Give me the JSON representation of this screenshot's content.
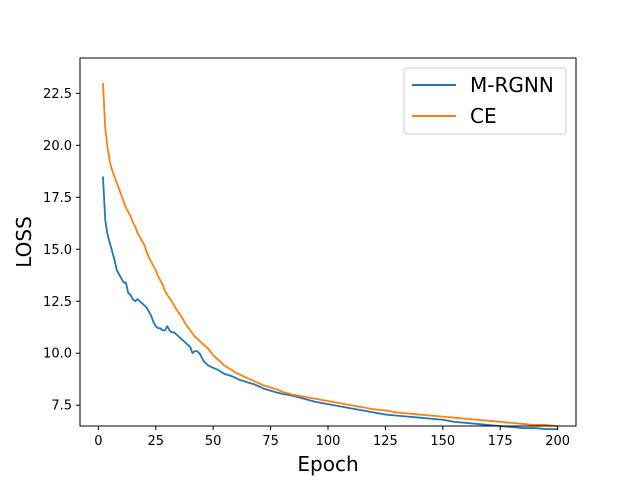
{
  "chart_data": {
    "type": "line",
    "xlabel": "Epoch",
    "ylabel": "LOSS",
    "xlim": [
      -8,
      208
    ],
    "ylim": [
      6.5,
      24.2
    ],
    "xticks": [
      0,
      25,
      50,
      75,
      100,
      125,
      150,
      175,
      200
    ],
    "yticks": [
      7.5,
      10.0,
      12.5,
      15.0,
      17.5,
      20.0,
      22.5
    ],
    "xtick_labels": [
      "0",
      "25",
      "50",
      "75",
      "100",
      "125",
      "150",
      "175",
      "200"
    ],
    "ytick_labels": [
      "7.5",
      "10.0",
      "12.5",
      "15.0",
      "17.5",
      "20.0",
      "22.5"
    ],
    "grid": false,
    "legend_position": "top-right",
    "series": [
      {
        "name": "M-RGNN",
        "color": "#1f77b4",
        "x": [
          2,
          3,
          4,
          5,
          6,
          7,
          8,
          9,
          10,
          11,
          12,
          13,
          14,
          15,
          16,
          17,
          18,
          19,
          20,
          21,
          22,
          23,
          24,
          25,
          26,
          27,
          28,
          29,
          30,
          31,
          32,
          33,
          34,
          35,
          36,
          37,
          38,
          39,
          40,
          41,
          42,
          43,
          44,
          45,
          46,
          47,
          48,
          50,
          52,
          55,
          58,
          60,
          62,
          65,
          68,
          70,
          72,
          75,
          78,
          80,
          85,
          90,
          95,
          100,
          105,
          110,
          115,
          120,
          125,
          130,
          135,
          140,
          145,
          150,
          155,
          160,
          165,
          170,
          175,
          180,
          185,
          190,
          195,
          200
        ],
        "y": [
          18.5,
          16.4,
          15.7,
          15.3,
          14.9,
          14.5,
          14.0,
          13.8,
          13.6,
          13.4,
          13.4,
          12.9,
          12.8,
          12.6,
          12.5,
          12.6,
          12.5,
          12.4,
          12.3,
          12.2,
          12.0,
          11.8,
          11.5,
          11.3,
          11.2,
          11.2,
          11.1,
          11.1,
          11.3,
          11.1,
          11.0,
          11.0,
          10.9,
          10.8,
          10.7,
          10.6,
          10.5,
          10.4,
          10.3,
          10.0,
          10.1,
          10.1,
          10.0,
          9.8,
          9.6,
          9.5,
          9.4,
          9.3,
          9.2,
          9.0,
          8.9,
          8.8,
          8.7,
          8.6,
          8.5,
          8.4,
          8.3,
          8.2,
          8.1,
          8.05,
          7.95,
          7.8,
          7.65,
          7.55,
          7.45,
          7.35,
          7.25,
          7.15,
          7.05,
          7.0,
          6.95,
          6.9,
          6.85,
          6.8,
          6.7,
          6.65,
          6.6,
          6.55,
          6.5,
          6.45,
          6.4,
          6.4,
          6.35,
          6.35
        ]
      },
      {
        "name": "CE",
        "color": "#ff7f0e",
        "x": [
          2,
          3,
          4,
          5,
          6,
          7,
          8,
          9,
          10,
          11,
          12,
          13,
          14,
          15,
          16,
          17,
          18,
          19,
          20,
          21,
          22,
          23,
          24,
          25,
          26,
          27,
          28,
          29,
          30,
          32,
          34,
          36,
          38,
          40,
          42,
          44,
          46,
          48,
          50,
          52,
          55,
          58,
          60,
          62,
          65,
          68,
          70,
          72,
          75,
          78,
          80,
          85,
          90,
          95,
          100,
          105,
          110,
          115,
          120,
          125,
          130,
          135,
          140,
          145,
          150,
          155,
          160,
          165,
          170,
          175,
          180,
          185,
          190,
          195,
          200
        ],
        "y": [
          23.0,
          20.8,
          19.9,
          19.2,
          18.8,
          18.5,
          18.2,
          17.9,
          17.6,
          17.3,
          17.0,
          16.8,
          16.6,
          16.3,
          16.1,
          15.8,
          15.6,
          15.4,
          15.2,
          14.9,
          14.6,
          14.4,
          14.2,
          14.0,
          13.7,
          13.5,
          13.3,
          13.0,
          12.8,
          12.5,
          12.1,
          11.8,
          11.4,
          11.1,
          10.8,
          10.6,
          10.4,
          10.2,
          9.9,
          9.7,
          9.4,
          9.2,
          9.05,
          8.95,
          8.8,
          8.65,
          8.55,
          8.45,
          8.35,
          8.25,
          8.15,
          8.0,
          7.9,
          7.8,
          7.7,
          7.6,
          7.5,
          7.4,
          7.3,
          7.25,
          7.15,
          7.1,
          7.05,
          7.0,
          6.95,
          6.9,
          6.85,
          6.8,
          6.75,
          6.7,
          6.65,
          6.6,
          6.55,
          6.55,
          6.5
        ]
      }
    ]
  }
}
